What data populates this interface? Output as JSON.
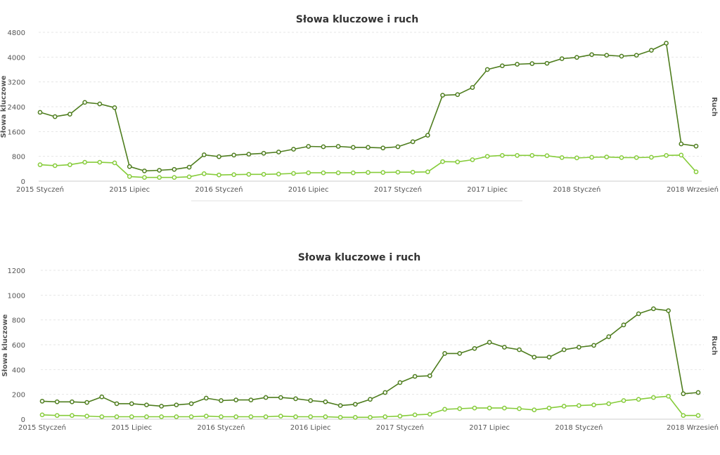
{
  "colors": {
    "series_keywords": "#4e7d1e",
    "series_traffic": "#86cc3a",
    "marker_fill": "#ffffff"
  },
  "chart_data": [
    {
      "type": "line",
      "title": "Słowa kluczowe i ruch",
      "ylabel": "Słowa kluczowe",
      "ylabel_right": "Ruch",
      "ylim": [
        0,
        4800
      ],
      "yticks": [
        "0",
        "800",
        "1600",
        "2400",
        "3200",
        "4000",
        "4800"
      ],
      "x_labels": [
        {
          "label": "2015 Styczeń",
          "index": 0
        },
        {
          "label": "2015 Lipiec",
          "index": 6
        },
        {
          "label": "2016 Styczeń",
          "index": 12
        },
        {
          "label": "2016 Lipiec",
          "index": 18
        },
        {
          "label": "2017 Styczeń",
          "index": 24
        },
        {
          "label": "2017 Lipiec",
          "index": 30
        },
        {
          "label": "2018 Styczeń",
          "index": 36
        },
        {
          "label": "2018 Wrzesień",
          "index": 44
        }
      ],
      "series": [
        {
          "values": [
            2220,
            2080,
            2160,
            2540,
            2490,
            2370,
            470,
            330,
            350,
            380,
            450,
            850,
            790,
            840,
            870,
            900,
            940,
            1030,
            1120,
            1110,
            1120,
            1090,
            1090,
            1070,
            1110,
            1270,
            1480,
            2770,
            2790,
            3020,
            3600,
            3720,
            3770,
            3790,
            3800,
            3950,
            3990,
            4080,
            4060,
            4030,
            4060,
            4220,
            4450,
            1200,
            1130
          ]
        },
        {
          "values": [
            530,
            500,
            530,
            610,
            610,
            590,
            150,
            120,
            120,
            120,
            140,
            240,
            200,
            210,
            220,
            220,
            230,
            250,
            270,
            270,
            270,
            270,
            280,
            280,
            290,
            290,
            300,
            630,
            620,
            690,
            800,
            830,
            830,
            830,
            820,
            760,
            750,
            770,
            780,
            760,
            760,
            770,
            830,
            840,
            300
          ]
        }
      ]
    },
    {
      "type": "line",
      "title": "Słowa kluczowe i ruch",
      "ylabel": "Słowa kluczowe",
      "ylabel_right": "Ruch",
      "ylim": [
        0,
        1200
      ],
      "yticks": [
        "0",
        "200",
        "400",
        "600",
        "800",
        "1000",
        "1200"
      ],
      "x_labels": [
        {
          "label": "2015 Styczeń",
          "index": 0
        },
        {
          "label": "2015 Lipiec",
          "index": 6
        },
        {
          "label": "2016 Styczeń",
          "index": 12
        },
        {
          "label": "2016 Lipiec",
          "index": 18
        },
        {
          "label": "2017 Styczeń",
          "index": 24
        },
        {
          "label": "2017 Lipiec",
          "index": 30
        },
        {
          "label": "2018 Styczeń",
          "index": 36
        },
        {
          "label": "2018 Wrzesień",
          "index": 44
        }
      ],
      "series": [
        {
          "values": [
            145,
            140,
            140,
            135,
            180,
            125,
            125,
            115,
            105,
            115,
            125,
            170,
            150,
            155,
            155,
            175,
            175,
            165,
            150,
            140,
            110,
            120,
            160,
            215,
            295,
            345,
            350,
            530,
            530,
            570,
            620,
            580,
            560,
            500,
            500,
            560,
            580,
            595,
            665,
            760,
            850,
            890,
            875,
            205,
            215
          ]
        },
        {
          "values": [
            35,
            30,
            30,
            25,
            20,
            20,
            20,
            20,
            20,
            20,
            20,
            25,
            20,
            20,
            20,
            20,
            25,
            20,
            20,
            20,
            15,
            15,
            15,
            20,
            25,
            35,
            40,
            80,
            85,
            90,
            90,
            90,
            85,
            75,
            90,
            105,
            110,
            115,
            125,
            150,
            160,
            175,
            185,
            30,
            30
          ]
        }
      ]
    }
  ]
}
